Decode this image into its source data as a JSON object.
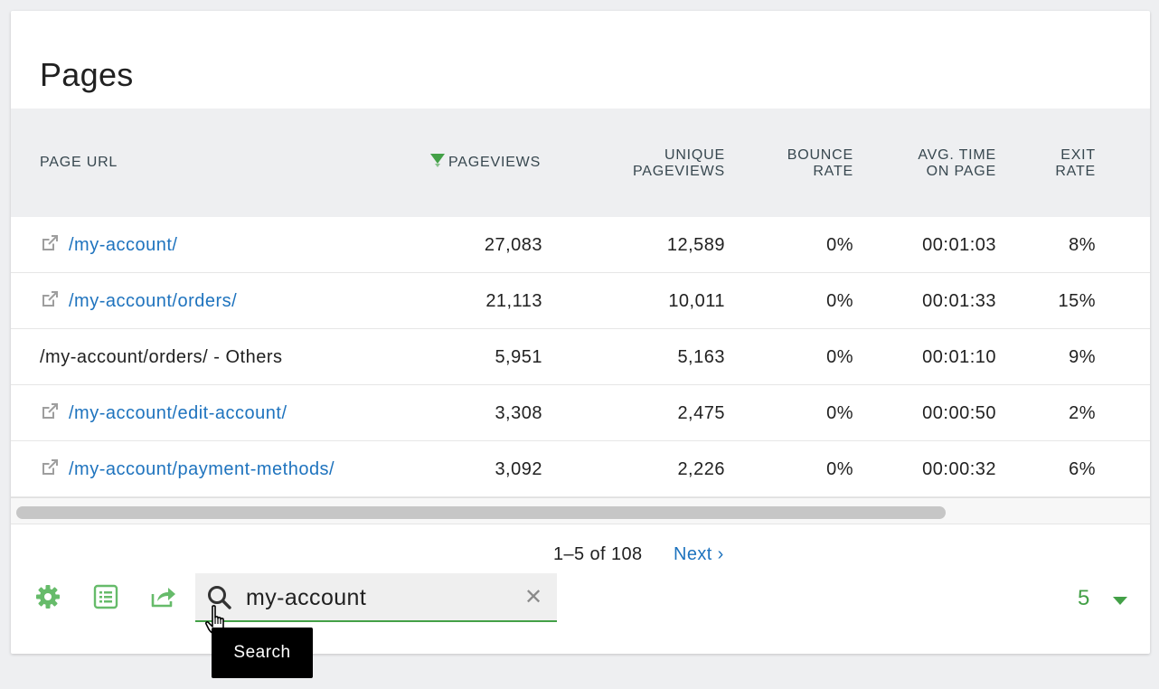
{
  "widget": {
    "title": "Pages"
  },
  "columns": {
    "page_url": "PAGE URL",
    "pageviews": "PAGEVIEWS",
    "unique_1": "UNIQUE",
    "unique_2": "PAGEVIEWS",
    "bounce_1": "BOUNCE",
    "bounce_2": "RATE",
    "avgtime_1": "AVG. TIME",
    "avgtime_2": "ON PAGE",
    "exit_1": "EXIT",
    "exit_2": "RATE"
  },
  "rows": [
    {
      "url": "/my-account/",
      "link": true,
      "pageviews": "27,083",
      "unique": "12,589",
      "bounce": "0%",
      "avg_time": "00:01:03",
      "exit": "8%"
    },
    {
      "url": "/my-account/orders/",
      "link": true,
      "pageviews": "21,113",
      "unique": "10,011",
      "bounce": "0%",
      "avg_time": "00:01:33",
      "exit": "15%"
    },
    {
      "url": "/my-account/orders/ - Others",
      "link": false,
      "pageviews": "5,951",
      "unique": "5,163",
      "bounce": "0%",
      "avg_time": "00:01:10",
      "exit": "9%"
    },
    {
      "url": "/my-account/edit-account/",
      "link": true,
      "pageviews": "3,308",
      "unique": "2,475",
      "bounce": "0%",
      "avg_time": "00:00:50",
      "exit": "2%"
    },
    {
      "url": "/my-account/payment-methods/",
      "link": true,
      "pageviews": "3,092",
      "unique": "2,226",
      "bounce": "0%",
      "avg_time": "00:00:32",
      "exit": "6%"
    }
  ],
  "pagination": {
    "range": "1–5 of 108",
    "next_label": "Next ›"
  },
  "search": {
    "value": "my-account",
    "clear_glyph": "✕"
  },
  "limit": {
    "value": "5"
  },
  "tooltip": {
    "text": "Search"
  },
  "icons": {
    "settings": "gear-icon",
    "table_view": "table-list-icon",
    "export": "export-icon",
    "search": "search-icon",
    "clear": "close-icon",
    "external": "external-link-icon",
    "sort": "sort-desc-icon"
  },
  "colors": {
    "accent_green": "#43a047",
    "link_blue": "#1e73be"
  }
}
